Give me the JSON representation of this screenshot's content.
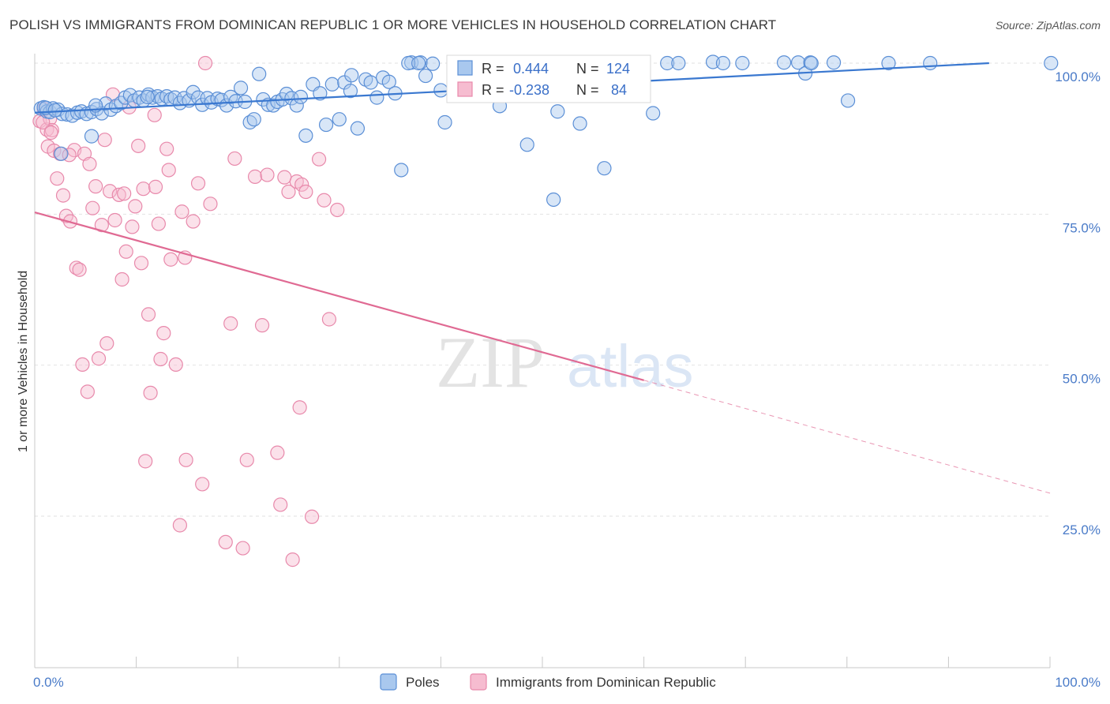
{
  "title": "POLISH VS IMMIGRANTS FROM DOMINICAN REPUBLIC 1 OR MORE VEHICLES IN HOUSEHOLD CORRELATION CHART",
  "source": "Source: ZipAtlas.com",
  "watermark": {
    "zip": "ZIP",
    "atlas": "atlas"
  },
  "colors": {
    "poles_fill": "#a9c8ee",
    "poles_stroke": "#5b8fd6",
    "poles_line": "#3a78d0",
    "dom_fill": "#f6bcd0",
    "dom_stroke": "#e889ab",
    "dom_line": "#e06a93",
    "grid": "#e2e2e2",
    "tick_text": "#4a7bc8"
  },
  "stats": {
    "r_label": "R =",
    "n_label": "N =",
    "poles": {
      "r": "0.444",
      "n": "124"
    },
    "dom": {
      "r": "-0.238",
      "n": "84"
    }
  },
  "chart_data": {
    "type": "scatter",
    "xlabel": "",
    "ylabel": "1 or more Vehicles in Household",
    "xlim": [
      0,
      100
    ],
    "ylim": [
      0,
      103
    ],
    "x_tick_labels": [
      "0.0%",
      "100.0%"
    ],
    "y_ticks": [
      25,
      50,
      75,
      100
    ],
    "y_tick_labels": [
      "25.0%",
      "50.0%",
      "75.0%",
      "100.0%"
    ],
    "grid": "horizontal dashed",
    "legend": "bottom-center",
    "series": [
      {
        "name": "Poles",
        "trend": {
          "x": [
            0,
            94
          ],
          "y": [
            91.8,
            100
          ]
        },
        "points": [
          [
            0.6,
            92.5
          ],
          [
            0.9,
            92.7
          ],
          [
            1.2,
            92
          ],
          [
            1.5,
            91.9
          ],
          [
            1.8,
            92.5
          ],
          [
            2.3,
            92.3
          ],
          [
            2.7,
            91.6
          ],
          [
            3.2,
            91.5
          ],
          [
            3.7,
            91.3
          ],
          [
            4.2,
            91.8
          ],
          [
            4.6,
            92
          ],
          [
            5.1,
            91.6
          ],
          [
            5.6,
            91.9
          ],
          [
            6.1,
            92.4
          ],
          [
            6.6,
            91.7
          ],
          [
            7.0,
            93.3
          ],
          [
            7.5,
            92.3
          ],
          [
            8.0,
            92.9
          ],
          [
            8.5,
            93.4
          ],
          [
            8.9,
            94.3
          ],
          [
            9.4,
            94.7
          ],
          [
            9.8,
            93.8
          ],
          [
            10.3,
            94.3
          ],
          [
            10.7,
            93.8
          ],
          [
            11.2,
            94.8
          ],
          [
            11.6,
            94.3
          ],
          [
            12.1,
            94.5
          ],
          [
            12.5,
            94.1
          ],
          [
            13.0,
            94.5
          ],
          [
            13.4,
            94
          ],
          [
            13.8,
            94.3
          ],
          [
            14.3,
            93.4
          ],
          [
            14.7,
            94.2
          ],
          [
            15.2,
            93.8
          ],
          [
            15.6,
            95.2
          ],
          [
            16.1,
            94.3
          ],
          [
            16.5,
            93.1
          ],
          [
            17.0,
            94.2
          ],
          [
            17.4,
            93.5
          ],
          [
            18.0,
            94.1
          ],
          [
            18.4,
            93.9
          ],
          [
            18.9,
            93
          ],
          [
            19.3,
            94.4
          ],
          [
            19.8,
            93.7
          ],
          [
            20.3,
            95.9
          ],
          [
            20.7,
            93.6
          ],
          [
            21.2,
            90.2
          ],
          [
            21.6,
            90.7
          ],
          [
            22.1,
            98.2
          ],
          [
            22.5,
            94
          ],
          [
            23.0,
            93.1
          ],
          [
            23.5,
            93
          ],
          [
            23.9,
            93.6
          ],
          [
            24.4,
            94
          ],
          [
            24.8,
            94.9
          ],
          [
            25.3,
            94.2
          ],
          [
            25.8,
            93
          ],
          [
            26.2,
            94.4
          ],
          [
            26.7,
            88
          ],
          [
            27.4,
            96.5
          ],
          [
            28.1,
            95
          ],
          [
            28.7,
            89.8
          ],
          [
            29.3,
            96.5
          ],
          [
            30.0,
            90.7
          ],
          [
            30.5,
            96.8
          ],
          [
            31.1,
            95.4
          ],
          [
            31.8,
            89.2
          ],
          [
            32.6,
            97.3
          ],
          [
            33.1,
            96.8
          ],
          [
            33.7,
            94.3
          ],
          [
            34.3,
            97.6
          ],
          [
            34.9,
            96.9
          ],
          [
            35.5,
            95
          ],
          [
            36.1,
            82.3
          ],
          [
            37.1,
            100.1
          ],
          [
            38.0,
            100.1
          ],
          [
            38.5,
            97.9
          ],
          [
            39.2,
            99.9
          ],
          [
            40.4,
            90.2
          ],
          [
            41.8,
            95.8
          ],
          [
            42.7,
            100.1
          ],
          [
            43.9,
            98.3
          ],
          [
            45.2,
            97.6
          ],
          [
            45.8,
            92.9
          ],
          [
            46.7,
            100.1
          ],
          [
            47.2,
            100
          ],
          [
            48.0,
            100.1
          ],
          [
            48.5,
            86.5
          ],
          [
            49.4,
            100.1
          ],
          [
            50.3,
            100
          ],
          [
            51.1,
            77.4
          ],
          [
            51.5,
            92
          ],
          [
            53.1,
            100
          ],
          [
            53.7,
            90
          ],
          [
            56.1,
            82.6
          ],
          [
            58.0,
            99.9
          ],
          [
            60.9,
            91.7
          ],
          [
            62.3,
            100
          ],
          [
            63.4,
            100
          ],
          [
            66.8,
            100.2
          ],
          [
            69.7,
            100
          ],
          [
            73.8,
            100.1
          ],
          [
            75.2,
            100.1
          ],
          [
            75.9,
            98.3
          ],
          [
            76.4,
            100.1
          ],
          [
            78.7,
            100.1
          ],
          [
            80.1,
            93.8
          ],
          [
            84.1,
            100
          ],
          [
            88.2,
            100
          ],
          [
            100.1,
            100
          ],
          [
            1.1,
            92.6
          ],
          [
            2.6,
            85
          ],
          [
            5.6,
            87.9
          ],
          [
            11.1,
            94.4
          ],
          [
            36.8,
            100
          ],
          [
            40.0,
            95.5
          ],
          [
            44.8,
            100.1
          ],
          [
            59.7,
            100
          ],
          [
            76.5,
            100
          ],
          [
            67.8,
            100
          ],
          [
            37.8,
            100
          ],
          [
            31.2,
            98
          ],
          [
            2.0,
            92.2
          ],
          [
            6.0,
            93.0
          ]
        ]
      },
      {
        "name": "Immigrants from Dominican Republic",
        "trend": {
          "x": [
            0,
            60
          ],
          "y": [
            75.3,
            47.5
          ]
        },
        "trend_dashed": {
          "x": [
            60,
            100
          ],
          "y": [
            47.5,
            28.8
          ]
        },
        "points": [
          [
            0.5,
            90.4
          ],
          [
            0.9,
            92.4
          ],
          [
            1.2,
            89
          ],
          [
            1.3,
            86.2
          ],
          [
            1.5,
            90.8
          ],
          [
            1.7,
            88.9
          ],
          [
            1.9,
            85.5
          ],
          [
            2.2,
            80.9
          ],
          [
            2.5,
            85
          ],
          [
            2.8,
            78.1
          ],
          [
            3.1,
            74.7
          ],
          [
            3.5,
            73.8
          ],
          [
            3.9,
            85.6
          ],
          [
            4.1,
            66.1
          ],
          [
            4.4,
            65.8
          ],
          [
            4.7,
            50.1
          ],
          [
            4.9,
            85
          ],
          [
            5.2,
            45.6
          ],
          [
            5.4,
            83.3
          ],
          [
            5.7,
            76
          ],
          [
            6.0,
            79.6
          ],
          [
            6.3,
            51.1
          ],
          [
            6.6,
            73.2
          ],
          [
            6.9,
            87.3
          ],
          [
            7.1,
            53.6
          ],
          [
            7.4,
            78.8
          ],
          [
            7.7,
            94.8
          ],
          [
            7.9,
            74
          ],
          [
            8.3,
            78.2
          ],
          [
            8.6,
            64.2
          ],
          [
            8.8,
            78.4
          ],
          [
            9.0,
            68.8
          ],
          [
            9.3,
            92.7
          ],
          [
            9.6,
            72.9
          ],
          [
            9.9,
            76.3
          ],
          [
            10.2,
            86.3
          ],
          [
            10.5,
            66.9
          ],
          [
            10.7,
            79.2
          ],
          [
            10.9,
            34.1
          ],
          [
            11.2,
            58.4
          ],
          [
            11.4,
            45.4
          ],
          [
            11.8,
            91.4
          ],
          [
            11.9,
            79.5
          ],
          [
            12.2,
            73.4
          ],
          [
            12.4,
            51
          ],
          [
            12.7,
            55.3
          ],
          [
            13.0,
            85.8
          ],
          [
            13.2,
            82.3
          ],
          [
            13.4,
            67.5
          ],
          [
            13.9,
            50.1
          ],
          [
            14.3,
            23.5
          ],
          [
            14.5,
            75.4
          ],
          [
            14.8,
            67.8
          ],
          [
            14.9,
            34.3
          ],
          [
            15.6,
            73.8
          ],
          [
            16.1,
            80.1
          ],
          [
            16.5,
            30.3
          ],
          [
            16.8,
            100
          ],
          [
            17.3,
            76.7
          ],
          [
            18.8,
            20.7
          ],
          [
            19.3,
            56.9
          ],
          [
            19.7,
            84.2
          ],
          [
            20.5,
            19.7
          ],
          [
            20.9,
            34.3
          ],
          [
            21.7,
            81.2
          ],
          [
            22.4,
            56.6
          ],
          [
            22.9,
            81.5
          ],
          [
            23.9,
            35.5
          ],
          [
            24.2,
            26.9
          ],
          [
            24.6,
            81.1
          ],
          [
            25.0,
            78.7
          ],
          [
            25.4,
            17.8
          ],
          [
            25.8,
            80.4
          ],
          [
            26.1,
            43
          ],
          [
            26.3,
            79.9
          ],
          [
            26.7,
            78.7
          ],
          [
            27.3,
            24.9
          ],
          [
            28.0,
            84.1
          ],
          [
            28.5,
            77.3
          ],
          [
            29.0,
            57.6
          ],
          [
            29.8,
            75.7
          ],
          [
            0.8,
            90.2
          ],
          [
            3.4,
            84.8
          ],
          [
            1.6,
            88.5
          ]
        ]
      }
    ]
  },
  "legend_labels": [
    "Poles",
    "Immigrants from Dominican Republic"
  ]
}
